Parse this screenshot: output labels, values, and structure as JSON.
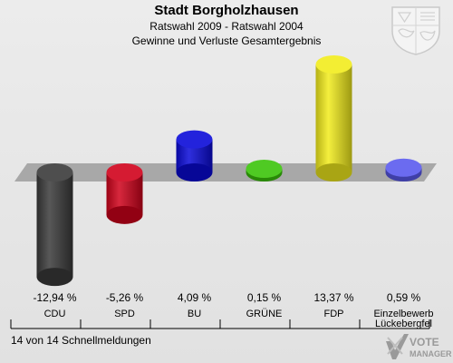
{
  "header": {
    "title": "Stadt Borgholzhausen",
    "subtitle": "Ratswahl 2009 - Ratswahl 2004",
    "subtitle2": "Gewinne und Verluste Gesamtergebnis"
  },
  "chart_data": {
    "type": "bar",
    "categories": [
      "CDU",
      "SPD",
      "BU",
      "GRÜNE",
      "FDP",
      "Einzelbewerb\nLückebergfel"
    ],
    "values": [
      -12.94,
      -5.26,
      4.09,
      0.15,
      13.37,
      0.59
    ],
    "value_labels": [
      "-12,94 %",
      "-5,26 %",
      "4,09 %",
      "0,15 %",
      "13,37 %",
      "0,59 %"
    ],
    "colors": [
      "#3a3a3a",
      "#d0021b",
      "#0a0ad8",
      "#3bc40a",
      "#f2ec1c",
      "#5a5aee"
    ],
    "title": "Stadt Borgholzhausen",
    "baseline": 0,
    "grid": false
  },
  "footer": {
    "text": "14 von 14 Schnellmeldungen"
  },
  "logo": {
    "line1": "VOTE",
    "line2": "MANAGER"
  },
  "icons": {
    "coat_of_arms": "coat-of-arms-icon",
    "votemanager": "votemanager-logo-icon"
  }
}
